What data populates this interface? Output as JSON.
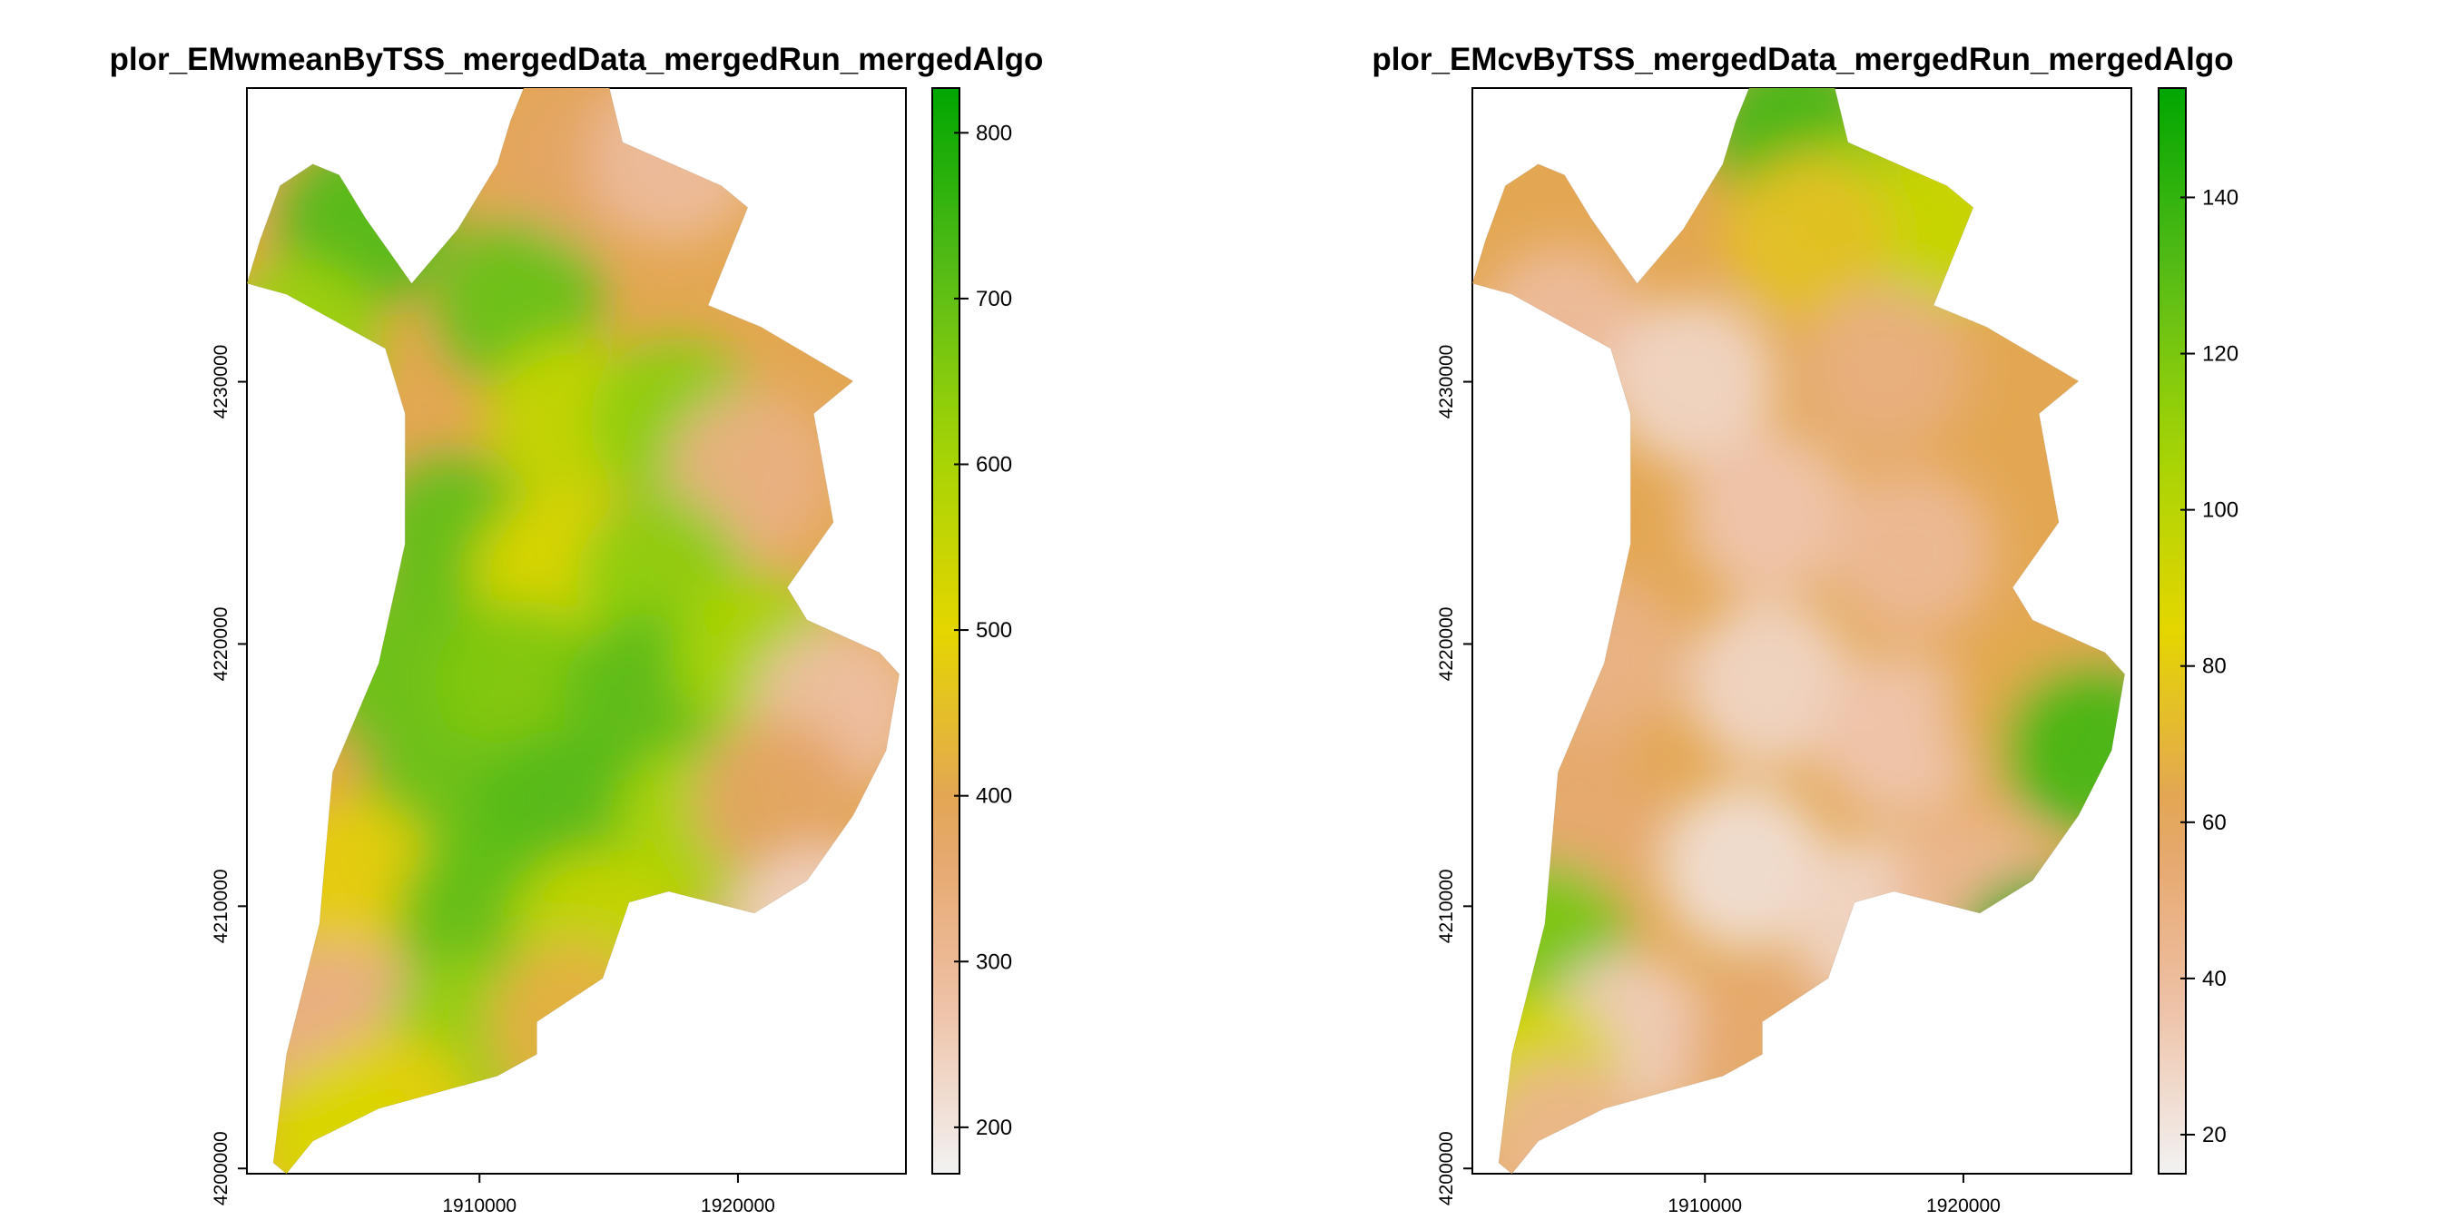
{
  "chart_data": [
    {
      "type": "heatmap",
      "title": "plor_EMwmeanByTSS_mergedData_mergedRun_mergedAlgo",
      "xlabel": "",
      "ylabel": "",
      "xlim": [
        1901000,
        1926500
      ],
      "ylim": [
        4199800,
        4241200
      ],
      "x_ticks": [
        1910000,
        1920000
      ],
      "y_ticks": [
        4200000,
        4210000,
        4220000,
        4230000
      ],
      "x_tick_labels": [
        "1910000",
        "1920000"
      ],
      "y_tick_labels": [
        "4200000",
        "4210000",
        "4220000",
        "4230000"
      ],
      "colorbar": {
        "min": 172,
        "max": 827,
        "ticks": [
          200,
          300,
          400,
          500,
          600,
          700,
          800
        ],
        "tick_labels": [
          "200",
          "300",
          "400",
          "500",
          "600",
          "700",
          "800"
        ],
        "colors": [
          "#f2f2f2",
          "#eebea1",
          "#e3a25c",
          "#e5d600",
          "#a4d406",
          "#55bb17",
          "#00a600"
        ]
      },
      "regions": [
        {
          "x": 1905500,
          "y": 4236000,
          "value": 720
        },
        {
          "x": 1903000,
          "y": 4231500,
          "value": 620
        },
        {
          "x": 1911500,
          "y": 4233000,
          "value": 690
        },
        {
          "x": 1914000,
          "y": 4238500,
          "value": 380
        },
        {
          "x": 1917500,
          "y": 4238500,
          "value": 290
        },
        {
          "x": 1913500,
          "y": 4228500,
          "value": 560
        },
        {
          "x": 1917500,
          "y": 4228500,
          "value": 640
        },
        {
          "x": 1920500,
          "y": 4226500,
          "value": 330
        },
        {
          "x": 1909000,
          "y": 4224000,
          "value": 700
        },
        {
          "x": 1913000,
          "y": 4222500,
          "value": 520
        },
        {
          "x": 1917000,
          "y": 4222500,
          "value": 640
        },
        {
          "x": 1907000,
          "y": 4219000,
          "value": 690
        },
        {
          "x": 1911500,
          "y": 4218500,
          "value": 660
        },
        {
          "x": 1916500,
          "y": 4218000,
          "value": 710
        },
        {
          "x": 1920800,
          "y": 4219500,
          "value": 600
        },
        {
          "x": 1923800,
          "y": 4217500,
          "value": 280
        },
        {
          "x": 1908500,
          "y": 4213500,
          "value": 690
        },
        {
          "x": 1913000,
          "y": 4213500,
          "value": 720
        },
        {
          "x": 1918500,
          "y": 4213000,
          "value": 600
        },
        {
          "x": 1921500,
          "y": 4214000,
          "value": 380
        },
        {
          "x": 1905000,
          "y": 4211000,
          "value": 480
        },
        {
          "x": 1910000,
          "y": 4209500,
          "value": 700
        },
        {
          "x": 1914500,
          "y": 4209000,
          "value": 560
        },
        {
          "x": 1904500,
          "y": 4205500,
          "value": 330
        },
        {
          "x": 1909500,
          "y": 4205000,
          "value": 630
        },
        {
          "x": 1913500,
          "y": 4205500,
          "value": 420
        },
        {
          "x": 1923000,
          "y": 4209000,
          "value": 240
        },
        {
          "x": 1906500,
          "y": 4202000,
          "value": 480
        },
        {
          "x": 1904500,
          "y": 4201000,
          "value": 520
        }
      ]
    },
    {
      "type": "heatmap",
      "title": "plor_EMcvByTSS_mergedData_mergedRun_mergedAlgo",
      "xlabel": "",
      "ylabel": "",
      "xlim": [
        1901000,
        1926500
      ],
      "ylim": [
        4199800,
        4241200
      ],
      "x_ticks": [
        1910000,
        1920000
      ],
      "y_ticks": [
        4200000,
        4210000,
        4220000,
        4230000
      ],
      "x_tick_labels": [
        "1910000",
        "1920000"
      ],
      "y_tick_labels": [
        "4200000",
        "4210000",
        "4220000",
        "4230000"
      ],
      "colorbar": {
        "min": 15,
        "max": 154,
        "ticks": [
          20,
          40,
          60,
          80,
          100,
          120,
          140
        ],
        "tick_labels": [
          "20",
          "40",
          "60",
          "80",
          "100",
          "120",
          "140"
        ],
        "colors": [
          "#f2f2f2",
          "#eebea1",
          "#e3a25c",
          "#e5d600",
          "#a4d406",
          "#55bb17",
          "#00a600"
        ]
      },
      "regions": [
        {
          "x": 1913500,
          "y": 4239500,
          "value": 135
        },
        {
          "x": 1916500,
          "y": 4236500,
          "value": 110
        },
        {
          "x": 1919500,
          "y": 4236000,
          "value": 95
        },
        {
          "x": 1914000,
          "y": 4235500,
          "value": 75
        },
        {
          "x": 1904500,
          "y": 4232000,
          "value": 40
        },
        {
          "x": 1909500,
          "y": 4230000,
          "value": 28
        },
        {
          "x": 1917000,
          "y": 4230500,
          "value": 50
        },
        {
          "x": 1912500,
          "y": 4225000,
          "value": 35
        },
        {
          "x": 1918000,
          "y": 4223500,
          "value": 42
        },
        {
          "x": 1906000,
          "y": 4219500,
          "value": 48
        },
        {
          "x": 1912500,
          "y": 4218500,
          "value": 28
        },
        {
          "x": 1917500,
          "y": 4216500,
          "value": 35
        },
        {
          "x": 1922500,
          "y": 4217500,
          "value": 65
        },
        {
          "x": 1924800,
          "y": 4216000,
          "value": 135
        },
        {
          "x": 1905000,
          "y": 4213500,
          "value": 55
        },
        {
          "x": 1911500,
          "y": 4211500,
          "value": 24
        },
        {
          "x": 1916500,
          "y": 4209500,
          "value": 28
        },
        {
          "x": 1920500,
          "y": 4210500,
          "value": 45
        },
        {
          "x": 1923000,
          "y": 4208000,
          "value": 150
        },
        {
          "x": 1903800,
          "y": 4208500,
          "value": 120
        },
        {
          "x": 1907000,
          "y": 4205000,
          "value": 32
        },
        {
          "x": 1912500,
          "y": 4204500,
          "value": 55
        },
        {
          "x": 1903500,
          "y": 4203500,
          "value": 90
        },
        {
          "x": 1904500,
          "y": 4201000,
          "value": 45
        }
      ]
    }
  ]
}
